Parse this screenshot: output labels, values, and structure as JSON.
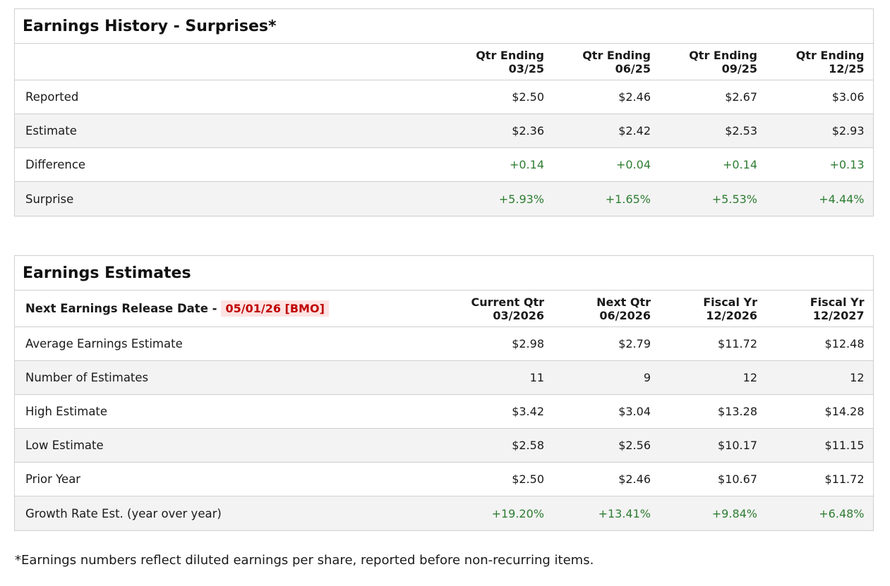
{
  "history": {
    "title": "Earnings History - Surprises*",
    "columns": [
      {
        "line1": "Qtr Ending",
        "line2": "03/25"
      },
      {
        "line1": "Qtr Ending",
        "line2": "06/25"
      },
      {
        "line1": "Qtr Ending",
        "line2": "09/25"
      },
      {
        "line1": "Qtr Ending",
        "line2": "12/25"
      }
    ],
    "rows": [
      {
        "label": "Reported",
        "values": [
          "$2.50",
          "$2.46",
          "$2.67",
          "$3.06"
        ],
        "positive": false
      },
      {
        "label": "Estimate",
        "values": [
          "$2.36",
          "$2.42",
          "$2.53",
          "$2.93"
        ],
        "positive": false
      },
      {
        "label": "Difference",
        "values": [
          "+0.14",
          "+0.04",
          "+0.14",
          "+0.13"
        ],
        "positive": true
      },
      {
        "label": "Surprise",
        "values": [
          "+5.93%",
          "+1.65%",
          "+5.53%",
          "+4.44%"
        ],
        "positive": true
      }
    ]
  },
  "estimates": {
    "title": "Earnings Estimates",
    "release_label": "Next Earnings Release Date -",
    "release_date": "05/01/26 [BMO]",
    "columns": [
      {
        "line1": "Current Qtr",
        "line2": "03/2026"
      },
      {
        "line1": "Next Qtr",
        "line2": "06/2026"
      },
      {
        "line1": "Fiscal Yr",
        "line2": "12/2026"
      },
      {
        "line1": "Fiscal Yr",
        "line2": "12/2027"
      }
    ],
    "rows": [
      {
        "label": "Average Earnings Estimate",
        "values": [
          "$2.98",
          "$2.79",
          "$11.72",
          "$12.48"
        ],
        "positive": false
      },
      {
        "label": "Number of Estimates",
        "values": [
          "11",
          "9",
          "12",
          "12"
        ],
        "positive": false
      },
      {
        "label": "High Estimate",
        "values": [
          "$3.42",
          "$3.04",
          "$13.28",
          "$14.28"
        ],
        "positive": false
      },
      {
        "label": "Low Estimate",
        "values": [
          "$2.58",
          "$2.56",
          "$10.17",
          "$11.15"
        ],
        "positive": false
      },
      {
        "label": "Prior Year",
        "values": [
          "$2.50",
          "$2.46",
          "$10.67",
          "$11.72"
        ],
        "positive": false
      },
      {
        "label": "Growth Rate Est. (year over year)",
        "values": [
          "+19.20%",
          "+13.41%",
          "+9.84%",
          "+6.48%"
        ],
        "positive": true
      }
    ]
  },
  "footnote": "*Earnings numbers reflect diluted earnings per share, reported before non-recurring items.",
  "colors": {
    "positive": "#2e7d32",
    "release_date_text": "#c00000",
    "release_date_bg": "#fde3e3",
    "alt_row_bg": "#f3f3f3",
    "border": "#cfcfcf"
  }
}
